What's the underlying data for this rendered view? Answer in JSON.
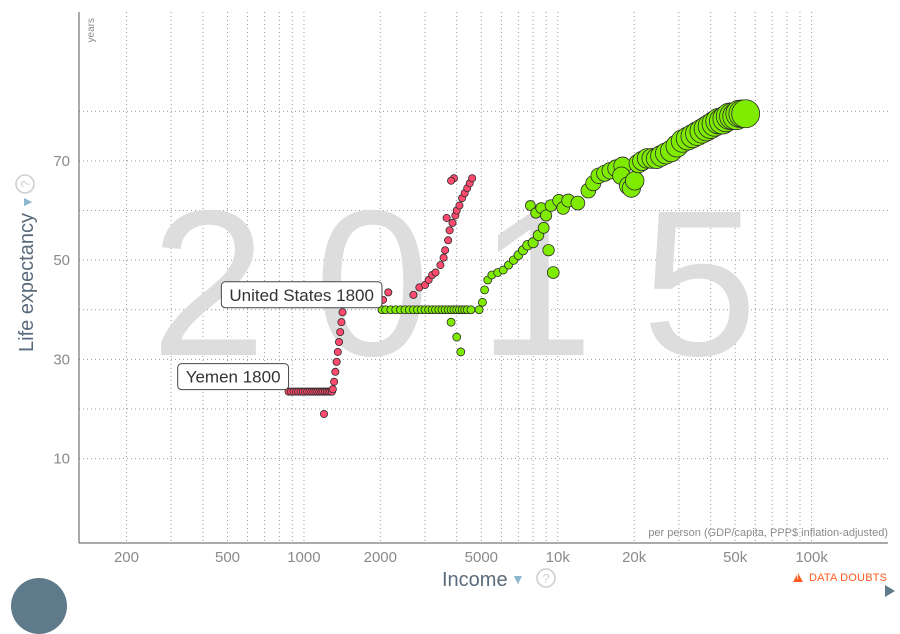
{
  "chart_data": {
    "type": "scatter",
    "watermark_year": "2015",
    "x_axis": {
      "title": "Income",
      "unit_note": "per person (GDP/capita, PPP$ inflation-adjusted)",
      "scale": "log",
      "range": [
        130,
        200000
      ],
      "ticks": [
        {
          "value": 200,
          "label": "200"
        },
        {
          "value": 500,
          "label": "500"
        },
        {
          "value": 1000,
          "label": "1000"
        },
        {
          "value": 2000,
          "label": "2000"
        },
        {
          "value": 5000,
          "label": "5000"
        },
        {
          "value": 10000,
          "label": "10k"
        },
        {
          "value": 20000,
          "label": "20k"
        },
        {
          "value": 50000,
          "label": "50k"
        },
        {
          "value": 100000,
          "label": "100k"
        }
      ],
      "minor_gridlines": [
        300,
        400,
        600,
        700,
        800,
        900,
        3000,
        4000,
        6000,
        7000,
        8000,
        9000,
        30000,
        40000,
        60000,
        70000,
        80000,
        90000
      ]
    },
    "y_axis": {
      "title": "Life expectancy",
      "unit_note": "years",
      "range": [
        -7,
        100
      ],
      "ticks": [
        {
          "value": 10,
          "label": "10"
        },
        {
          "value": 30,
          "label": "30"
        },
        {
          "value": 50,
          "label": "50"
        },
        {
          "value": 70,
          "label": "70"
        }
      ],
      "minor_gridlines": [
        20,
        40,
        60,
        80
      ]
    },
    "grid": true,
    "series": [
      {
        "name": "Yemen",
        "color": "#ff4b6e",
        "points": [
          [
            870,
            23.5
          ],
          [
            890,
            23.5
          ],
          [
            910,
            23.5
          ],
          [
            930,
            23.5
          ],
          [
            950,
            23.5
          ],
          [
            970,
            23.5
          ],
          [
            990,
            23.5
          ],
          [
            1010,
            23.5
          ],
          [
            1030,
            23.5
          ],
          [
            1050,
            23.5
          ],
          [
            1070,
            23.5
          ],
          [
            1090,
            23.5
          ],
          [
            1110,
            23.5
          ],
          [
            1130,
            23.5
          ],
          [
            1150,
            23.5
          ],
          [
            1170,
            23.5
          ],
          [
            1190,
            23.5
          ],
          [
            1210,
            23.5
          ],
          [
            1230,
            23.5
          ],
          [
            1250,
            23.5
          ],
          [
            1270,
            23.5
          ],
          [
            1290,
            23.5
          ],
          [
            1200,
            19
          ],
          [
            1300,
            24
          ],
          [
            1315,
            25.5
          ],
          [
            1330,
            27.5
          ],
          [
            1345,
            29.5
          ],
          [
            1360,
            31.5
          ],
          [
            1375,
            33.5
          ],
          [
            1390,
            35.5
          ],
          [
            1405,
            37.5
          ],
          [
            1420,
            39.5
          ],
          [
            1440,
            41.5
          ],
          [
            1460,
            43
          ],
          [
            1480,
            44.5
          ],
          [
            2050,
            42
          ],
          [
            2150,
            43.5
          ],
          [
            2700,
            43
          ],
          [
            2850,
            44.5
          ],
          [
            3000,
            45
          ],
          [
            3100,
            46
          ],
          [
            3200,
            47
          ],
          [
            3300,
            47.5
          ],
          [
            3450,
            49
          ],
          [
            3550,
            50.5
          ],
          [
            3600,
            52
          ],
          [
            3700,
            54
          ],
          [
            3750,
            56
          ],
          [
            3850,
            57.5
          ],
          [
            3950,
            59
          ],
          [
            4000,
            60
          ],
          [
            3650,
            58.5
          ],
          [
            4100,
            61
          ],
          [
            4200,
            62.5
          ],
          [
            4300,
            63.5
          ],
          [
            4400,
            64.5
          ],
          [
            4500,
            65.5
          ],
          [
            3900,
            66.5
          ],
          [
            3800,
            66
          ],
          [
            4600,
            66.5
          ]
        ]
      },
      {
        "name": "United States",
        "color": "#7feb00",
        "points": [
          [
            2030,
            40
          ],
          [
            2100,
            40
          ],
          [
            2200,
            40
          ],
          [
            2300,
            40
          ],
          [
            2400,
            40
          ],
          [
            2500,
            40
          ],
          [
            2600,
            40
          ],
          [
            2700,
            40
          ],
          [
            2800,
            40
          ],
          [
            2900,
            40
          ],
          [
            3000,
            40
          ],
          [
            3100,
            40
          ],
          [
            3200,
            40
          ],
          [
            3300,
            40
          ],
          [
            3400,
            40
          ],
          [
            3500,
            40
          ],
          [
            3600,
            40
          ],
          [
            3700,
            40
          ],
          [
            3800,
            40
          ],
          [
            3900,
            40
          ],
          [
            4000,
            40
          ],
          [
            4100,
            40
          ],
          [
            4200,
            40
          ],
          [
            4300,
            40
          ],
          [
            4400,
            40
          ],
          [
            4550,
            40
          ],
          [
            3800,
            37.5
          ],
          [
            4000,
            34.5
          ],
          [
            4150,
            31.5
          ],
          [
            4900,
            40
          ],
          [
            5050,
            41.5
          ],
          [
            5150,
            44
          ],
          [
            5300,
            46
          ],
          [
            5500,
            47
          ],
          [
            5800,
            47.5
          ],
          [
            6100,
            48
          ],
          [
            6400,
            49
          ],
          [
            6700,
            50
          ],
          [
            7000,
            51
          ],
          [
            7300,
            52
          ],
          [
            7600,
            53
          ],
          [
            8000,
            53.5
          ],
          [
            8400,
            55
          ],
          [
            8800,
            56.5
          ],
          [
            9200,
            52
          ],
          [
            9600,
            47.5
          ],
          [
            7800,
            61
          ],
          [
            8200,
            59.5
          ],
          [
            8600,
            60.5
          ],
          [
            9000,
            59
          ],
          [
            9400,
            61
          ],
          [
            10100,
            62
          ],
          [
            10500,
            60.5
          ],
          [
            11000,
            62
          ],
          [
            12000,
            61.5
          ],
          [
            13200,
            64
          ],
          [
            13800,
            65.5
          ],
          [
            14500,
            67
          ],
          [
            15300,
            67.5
          ],
          [
            16100,
            68
          ],
          [
            17000,
            68.5
          ],
          [
            18000,
            69
          ],
          [
            17800,
            67
          ],
          [
            19000,
            65
          ],
          [
            19500,
            64.5
          ],
          [
            20100,
            66
          ],
          [
            20800,
            69.5
          ],
          [
            21500,
            70
          ],
          [
            22500,
            70.5
          ],
          [
            23500,
            70.5
          ],
          [
            24500,
            70.5
          ],
          [
            25500,
            71
          ],
          [
            26700,
            71.5
          ],
          [
            28000,
            72
          ],
          [
            29500,
            73
          ],
          [
            31000,
            74
          ],
          [
            32500,
            74.5
          ],
          [
            34000,
            75
          ],
          [
            35500,
            75.5
          ],
          [
            37000,
            76
          ],
          [
            38500,
            76.5
          ],
          [
            40000,
            77
          ],
          [
            41500,
            77.5
          ],
          [
            43000,
            78
          ],
          [
            44500,
            78
          ],
          [
            46000,
            78.5
          ],
          [
            47500,
            79
          ],
          [
            49000,
            79
          ],
          [
            50500,
            79
          ],
          [
            52000,
            79.5
          ],
          [
            53500,
            79.5
          ],
          [
            55000,
            79.5
          ]
        ]
      }
    ],
    "annotations": [
      {
        "text": "United States 1800",
        "x": 2030,
        "y": 40,
        "side": "top-left"
      },
      {
        "text": "Yemen 1800",
        "x": 870,
        "y": 23.5,
        "side": "top-left"
      }
    ],
    "data_doubts_label": "DATA DOUBTS",
    "help_symbol": "?",
    "dropdown_symbol": "▼"
  }
}
